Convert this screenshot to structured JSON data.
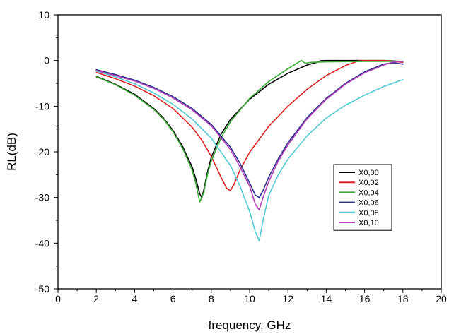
{
  "chart_data": {
    "type": "line",
    "title": "",
    "xlabel": "frequency, GHz",
    "ylabel": "RL(dB)",
    "xlim": [
      0,
      20
    ],
    "ylim": [
      -50,
      10
    ],
    "xticks": [
      0,
      2,
      4,
      6,
      8,
      10,
      12,
      14,
      16,
      18,
      20
    ],
    "yticks": [
      10,
      0,
      -10,
      -20,
      -30,
      -40,
      -50
    ],
    "xtick_labels": [
      "0",
      "2",
      "4",
      "6",
      "8",
      "10",
      "12",
      "14",
      "16",
      "18",
      "20"
    ],
    "ytick_labels": [
      "10",
      "0",
      "-10",
      "-20",
      "-30",
      "-40",
      "-50"
    ],
    "grid": false,
    "legend_position": "right-middle",
    "series": [
      {
        "name": "X0,00",
        "color": "#000000",
        "x": [
          2,
          3,
          4,
          5,
          5.5,
          6,
          6.5,
          7,
          7.2,
          7.4,
          7.5,
          7.6,
          7.8,
          8,
          8.5,
          9,
          10,
          11,
          12,
          13,
          13.5,
          13.7,
          14,
          15,
          16,
          17,
          18
        ],
        "y": [
          -3.5,
          -5.2,
          -7.4,
          -10.5,
          -12.6,
          -15.3,
          -18.8,
          -23.3,
          -26,
          -29.2,
          -30,
          -28.5,
          -24.5,
          -21.2,
          -16.2,
          -12.9,
          -8.5,
          -5.2,
          -2.8,
          -1,
          -0.4,
          -0.05,
          0,
          0,
          0,
          0,
          -0.2
        ]
      },
      {
        "name": "X0,02",
        "color": "#e02020",
        "x": [
          2,
          3,
          4,
          5,
          6,
          7,
          7.5,
          8,
          8.5,
          8.8,
          9,
          9.2,
          9.5,
          10,
          11,
          12,
          13,
          14,
          15,
          15.7,
          16,
          17,
          18
        ],
        "y": [
          -2.6,
          -4,
          -5.6,
          -7.7,
          -10.5,
          -14.6,
          -17.4,
          -21,
          -25.5,
          -28,
          -28.5,
          -27,
          -24,
          -20.1,
          -14.4,
          -10,
          -6.3,
          -3.3,
          -1.1,
          -0.1,
          0,
          0,
          -0.4
        ]
      },
      {
        "name": "X0,04",
        "color": "#3aaa35",
        "x": [
          2,
          3,
          4,
          5,
          5.5,
          6,
          6.5,
          7,
          7.2,
          7.4,
          7.6,
          7.8,
          8,
          8.5,
          9,
          10,
          11,
          12,
          12.5,
          12.7,
          12.9,
          13.2,
          14,
          16,
          18
        ],
        "y": [
          -3.6,
          -5.3,
          -7.6,
          -10.7,
          -12.8,
          -15.6,
          -19.2,
          -24,
          -27,
          -31,
          -29,
          -25,
          -22,
          -17,
          -13.4,
          -8.3,
          -4.6,
          -1.8,
          -0.5,
          0,
          -0.6,
          -0.4,
          -0.3,
          -0.2,
          -0.2
        ]
      },
      {
        "name": "X0,06",
        "color": "#2b2f8f",
        "x": [
          2,
          3,
          4,
          5,
          6,
          7,
          8,
          9,
          9.5,
          10,
          10.3,
          10.5,
          10.7,
          11,
          11.5,
          12,
          13,
          14,
          15,
          16,
          17,
          17.5,
          18
        ],
        "y": [
          -2,
          -3.1,
          -4.3,
          -5.9,
          -7.9,
          -10.5,
          -14,
          -19,
          -22.5,
          -26.8,
          -29.5,
          -30,
          -28.5,
          -25.5,
          -21.5,
          -18,
          -12.5,
          -8.3,
          -5,
          -2.5,
          -0.8,
          -0.5,
          -0.8
        ]
      },
      {
        "name": "X0,08",
        "color": "#4fc9d4",
        "x": [
          2,
          3,
          4,
          5,
          6,
          7,
          8,
          9,
          9.5,
          10,
          10.3,
          10.5,
          10.7,
          11,
          11.5,
          12,
          13,
          14,
          15,
          16,
          17,
          18
        ],
        "y": [
          -2.3,
          -3.6,
          -5.1,
          -7.1,
          -9.6,
          -12.8,
          -17,
          -23,
          -27.5,
          -33,
          -37.5,
          -39.5,
          -35,
          -29.5,
          -25,
          -21.6,
          -16.5,
          -12.6,
          -9.8,
          -7.6,
          -5.7,
          -4.2
        ]
      },
      {
        "name": "X0,10",
        "color": "#b23fb5",
        "x": [
          2,
          3,
          4,
          5,
          6,
          7,
          8,
          9,
          9.5,
          10,
          10.3,
          10.5,
          10.7,
          11,
          11.5,
          12,
          13,
          14,
          15,
          16,
          17,
          17.5,
          18
        ],
        "y": [
          -2.2,
          -3.3,
          -4.5,
          -6.1,
          -8.2,
          -10.8,
          -14.3,
          -19.5,
          -23.3,
          -27.5,
          -31.5,
          -32.7,
          -30,
          -26.5,
          -22,
          -18.5,
          -12.8,
          -8.5,
          -5.2,
          -2.7,
          -1,
          -0.3,
          -0.3
        ]
      }
    ]
  }
}
